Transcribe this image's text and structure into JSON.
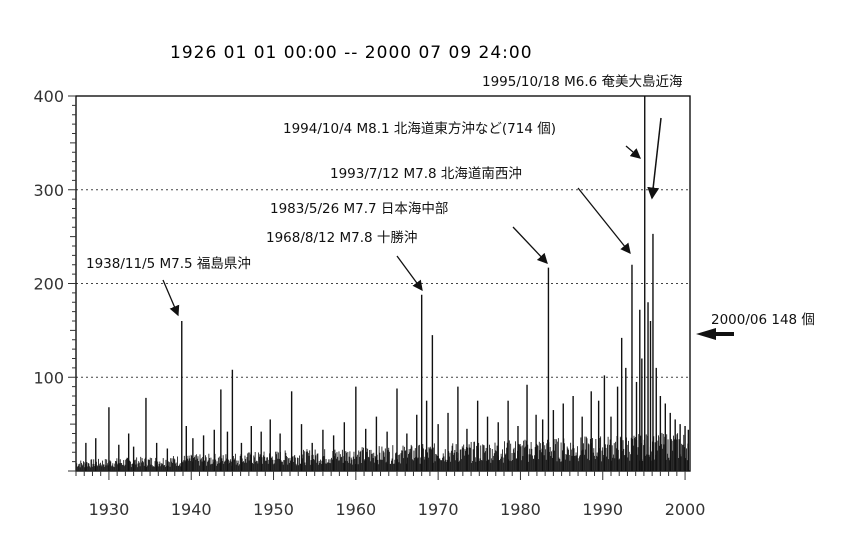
{
  "chart_data": {
    "type": "bar",
    "title": "1926 01 01 00:00 -- 2000 07 09 24:00",
    "xlim": [
      1926,
      2000.6
    ],
    "ylim": [
      0,
      400
    ],
    "yticks": [
      100,
      200,
      300,
      400
    ],
    "xticks": [
      1930,
      1940,
      1950,
      1960,
      1970,
      1980,
      1990,
      2000
    ],
    "grid": "dotted horizontal at 100, 200, 300",
    "series": [
      {
        "name": "",
        "x": [
          1927.2,
          1928.4,
          1930.0,
          1931.2,
          1932.4,
          1933.0,
          1934.5,
          1935.8,
          1937.1,
          1938.85,
          1939.4,
          1940.2,
          1941.5,
          1942.8,
          1943.6,
          1944.4,
          1945.0,
          1946.1,
          1947.3,
          1948.5,
          1949.6,
          1950.8,
          1952.2,
          1953.4,
          1954.7,
          1956.0,
          1957.3,
          1958.6,
          1960.0,
          1961.2,
          1962.5,
          1963.8,
          1965.0,
          1966.2,
          1967.4,
          1968.0,
          1968.6,
          1969.3,
          1970.0,
          1971.2,
          1972.4,
          1973.5,
          1974.8,
          1976.0,
          1977.3,
          1978.5,
          1979.7,
          1980.8,
          1981.9,
          1982.7,
          1983.4,
          1984.0,
          1985.2,
          1986.4,
          1987.5,
          1988.6,
          1989.5,
          1990.2,
          1991.0,
          1991.8,
          1992.3,
          1992.8,
          1993.55,
          1994.1,
          1994.5,
          1994.75,
          1995.1,
          1995.5,
          1995.8,
          1996.1,
          1996.5,
          1997.0,
          1997.6,
          1998.2,
          1998.8,
          1999.4,
          2000.0,
          2000.4
        ],
        "values": [
          30,
          35,
          68,
          28,
          40,
          26,
          78,
          30,
          24,
          160,
          48,
          35,
          38,
          44,
          87,
          42,
          108,
          30,
          48,
          42,
          55,
          40,
          85,
          50,
          30,
          44,
          38,
          52,
          90,
          45,
          58,
          42,
          88,
          40,
          60,
          188,
          75,
          145,
          50,
          62,
          90,
          45,
          75,
          58,
          52,
          75,
          48,
          92,
          60,
          55,
          217,
          65,
          72,
          80,
          58,
          85,
          75,
          102,
          58,
          90,
          142,
          110,
          220,
          95,
          172,
          120,
          400,
          180,
          160,
          253,
          110,
          80,
          72,
          62,
          55,
          50,
          48,
          44
        ]
      }
    ],
    "annotations": [
      {
        "text": "1938/11/5 M7.5 福島県沖",
        "x": 1938.85,
        "y": 160
      },
      {
        "text": "1968/8/12 M7.8 十勝沖",
        "x": 1968.0,
        "y": 188
      },
      {
        "text": "1983/5/26 M7.7 日本海中部",
        "x": 1983.4,
        "y": 217
      },
      {
        "text": "1993/7/12 M7.8 北海道南西沖",
        "x": 1993.55,
        "y": 220
      },
      {
        "text": "1994/10/4 M8.1 北海道東方沖など(714 個)",
        "x": 1994.75,
        "y": 400
      },
      {
        "text": "1995/10/18 M6.6 奄美大島近海",
        "x": 1995.8,
        "y": 400
      },
      {
        "text": "2000/06 148 個",
        "x": 2000.5,
        "y": 148
      }
    ]
  }
}
